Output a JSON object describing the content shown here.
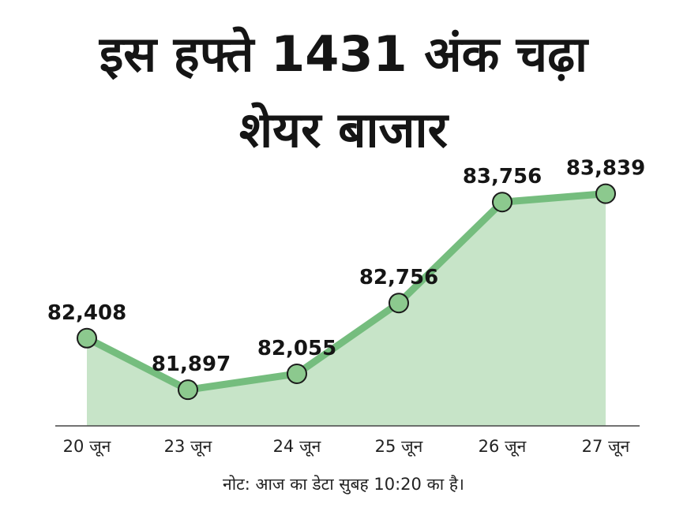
{
  "title_line1": "इस हफ्ते 1431 अंक चढ़ा",
  "title_line2": "शेयर बाजार",
  "note": "नोट: आज का डेटा सुबह 10:20 का है।",
  "colors": {
    "line": "#75bd7e",
    "fill": "#c7e4c8",
    "marker": "#8cc98e",
    "marker_stroke": "#1b1b1b",
    "axis": "#444444"
  },
  "chart_data": {
    "type": "area",
    "title": "इस हफ्ते 1431 अंक चढ़ा शेयर बाजार",
    "xlabel": "",
    "ylabel": "",
    "categories": [
      "20 जून",
      "23 जून",
      "24 जून",
      "25 जून",
      "26 जून",
      "27 जून"
    ],
    "values": [
      82408,
      81897,
      82055,
      82756,
      83756,
      83839
    ],
    "data_labels": [
      "82,408",
      "81,897",
      "82,055",
      "82,756",
      "83,756",
      "83,839"
    ],
    "ylim": [
      81500,
      84000
    ],
    "grid": false,
    "legend": "none"
  }
}
